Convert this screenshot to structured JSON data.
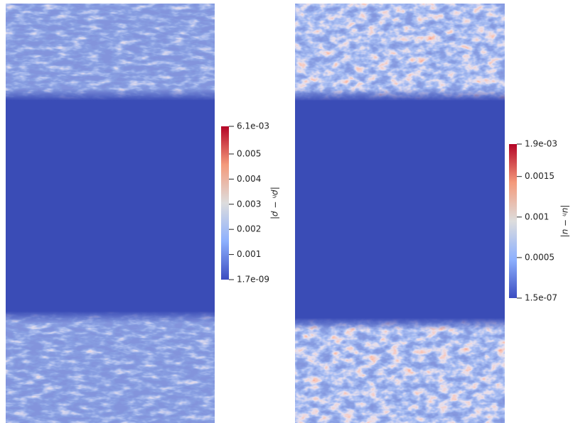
{
  "chart_data": [
    {
      "type": "heatmap",
      "colorbar_label": "|ρₕ − ρ|",
      "zlim": [
        1.7e-09,
        0.0061
      ],
      "zticks": [
        {
          "value": 1.7e-09,
          "label": "1.7e-09"
        },
        0.001,
        0.002,
        0.003,
        0.004,
        0.005,
        {
          "value": 0.0061,
          "label": "6.1e-03"
        }
      ]
    },
    {
      "type": "heatmap",
      "colorbar_label": "|uₕ − u|",
      "zlim": [
        1.5e-07,
        0.0019
      ],
      "zticks": [
        {
          "value": 1.5e-07,
          "label": "1.5e-07"
        },
        0.0005,
        0.001,
        0.0015,
        {
          "value": 0.0019,
          "label": "1.9e-03"
        }
      ]
    }
  ]
}
